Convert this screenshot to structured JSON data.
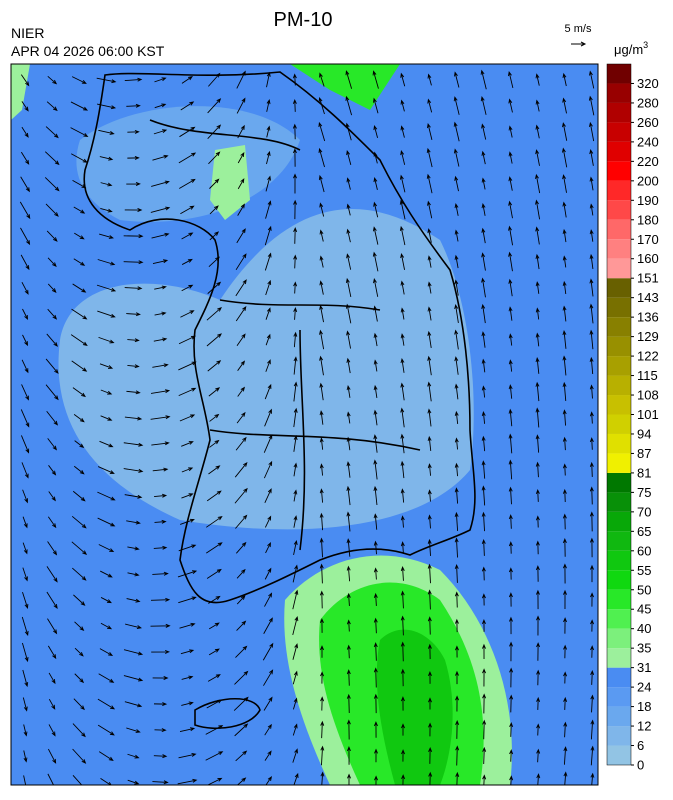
{
  "header": {
    "title": "PM-10",
    "agency": "NIER",
    "datetime": "APR 04 2026 06:00 KST",
    "wind_scale": "5 m/s"
  },
  "legend": {
    "unit": {
      "base": "μg/m",
      "sup": "3"
    },
    "levels": [
      0,
      6,
      12,
      18,
      24,
      31,
      35,
      40,
      45,
      50,
      55,
      60,
      65,
      70,
      75,
      81,
      87,
      94,
      101,
      108,
      115,
      122,
      129,
      136,
      143,
      151,
      160,
      170,
      180,
      190,
      200,
      220,
      240,
      260,
      280,
      320
    ],
    "colors": [
      "#92c4e4",
      "#7fb6ea",
      "#6aa8ee",
      "#5a9af2",
      "#4a8cf2",
      "#9cf09c",
      "#7cf07c",
      "#50f050",
      "#28e828",
      "#10d810",
      "#10c810",
      "#10b810",
      "#08a808",
      "#089008",
      "#007800",
      "#f0f000",
      "#e0e000",
      "#d0d000",
      "#c8c000",
      "#b8b000",
      "#a8a000",
      "#989000",
      "#888000",
      "#787000",
      "#686000",
      "#ff9898",
      "#ff8080",
      "#ff6868",
      "#ff4848",
      "#ff2828",
      "#ff0000",
      "#e00000",
      "#c80000",
      "#b00000",
      "#980000",
      "#700000"
    ]
  }
}
